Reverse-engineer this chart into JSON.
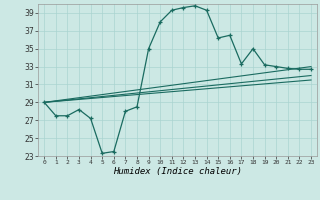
{
  "title": "",
  "xlabel": "Humidex (Indice chaleur)",
  "ylabel": "",
  "bg_color": "#cce8e4",
  "grid_color": "#aad4d0",
  "line_color": "#1a6b60",
  "xlim": [
    -0.5,
    23.5
  ],
  "ylim": [
    23,
    40
  ],
  "yticks": [
    23,
    25,
    27,
    29,
    31,
    33,
    35,
    37,
    39
  ],
  "xticks": [
    0,
    1,
    2,
    3,
    4,
    5,
    6,
    7,
    8,
    9,
    10,
    11,
    12,
    13,
    14,
    15,
    16,
    17,
    18,
    19,
    20,
    21,
    22,
    23
  ],
  "series": [
    {
      "x": [
        0,
        1,
        2,
        3,
        4,
        5,
        6,
        7,
        8,
        9,
        10,
        11,
        12,
        13,
        14,
        15,
        16,
        17,
        18,
        19,
        20,
        21,
        22,
        23
      ],
      "y": [
        29,
        27.5,
        27.5,
        28.2,
        27.2,
        23.3,
        23.5,
        28.0,
        28.5,
        35.0,
        38.0,
        39.3,
        39.6,
        39.8,
        39.3,
        36.2,
        36.5,
        33.3,
        35.0,
        33.2,
        33.0,
        32.8,
        32.7,
        32.7
      ],
      "marker": true
    },
    {
      "x": [
        0,
        23
      ],
      "y": [
        29,
        33.0
      ],
      "marker": false
    },
    {
      "x": [
        0,
        23
      ],
      "y": [
        29,
        32.0
      ],
      "marker": false
    },
    {
      "x": [
        0,
        23
      ],
      "y": [
        29,
        31.5
      ],
      "marker": false
    }
  ]
}
